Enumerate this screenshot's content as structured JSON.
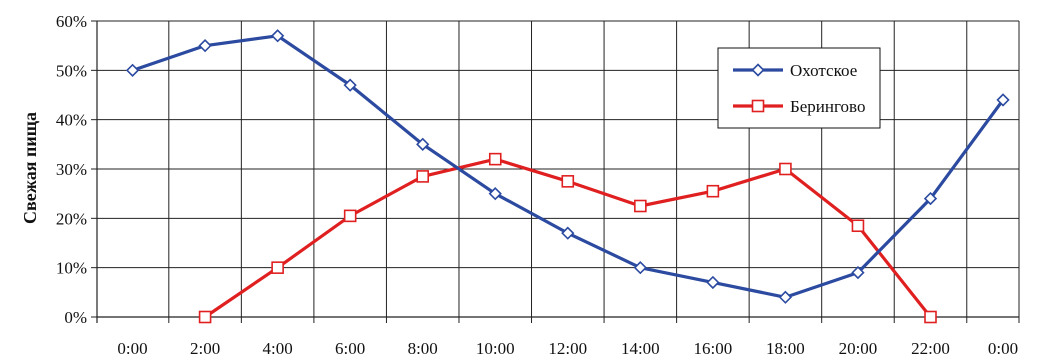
{
  "chart_data": {
    "type": "line",
    "title": "",
    "xlabel": "",
    "ylabel": "Свежая пища",
    "categories": [
      "0:00",
      "2:00",
      "4:00",
      "6:00",
      "8:00",
      "10:00",
      "12:00",
      "14:00",
      "16:00",
      "18:00",
      "20:00",
      "22:00",
      "0:00"
    ],
    "yticks": [
      "0%",
      "10%",
      "20%",
      "30%",
      "40%",
      "50%",
      "60%"
    ],
    "ylim": [
      0,
      60
    ],
    "grid": true,
    "legend_position": "top-right",
    "series": [
      {
        "name": "Охотское",
        "color": "#2b4aa0",
        "marker": "diamond",
        "values": [
          50,
          55,
          57,
          47,
          35,
          25,
          17,
          10,
          7,
          4,
          9,
          24,
          44
        ]
      },
      {
        "name": "Берингово",
        "color": "#e02020",
        "marker": "square",
        "values": [
          null,
          0,
          10,
          20.5,
          28.5,
          32,
          27.5,
          22.5,
          25.5,
          30,
          18.5,
          0,
          null
        ]
      }
    ]
  }
}
